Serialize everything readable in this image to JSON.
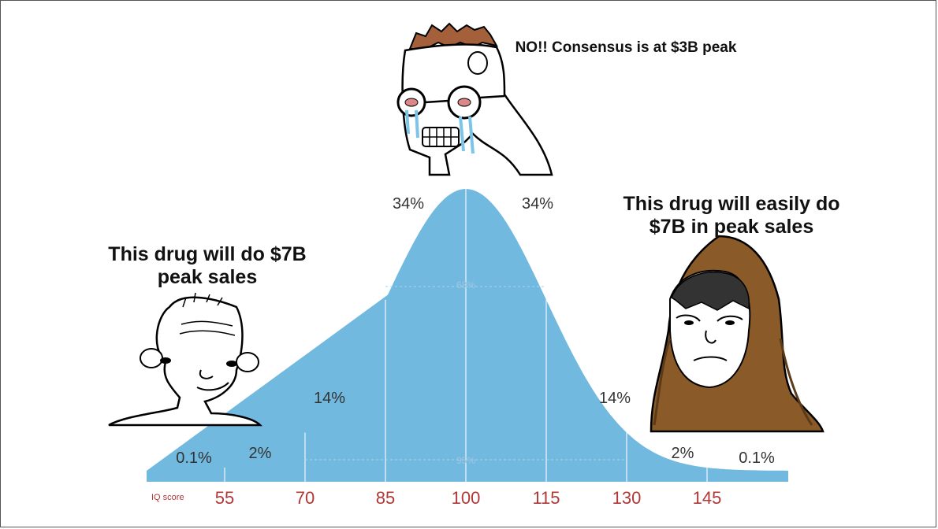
{
  "captions": {
    "left": "This drug will do $7B peak sales",
    "top": "NO!! Consensus is at $3B peak",
    "right": "This drug will easily do $7B in peak sales"
  },
  "chart_data": {
    "type": "area",
    "xlabel": "IQ score",
    "x_ticks": [
      55,
      70,
      85,
      100,
      115,
      130,
      145
    ],
    "mean": 100,
    "sd": 15,
    "band_labels": [
      "0.1%",
      "2%",
      "14%",
      "34%",
      "34%",
      "14%",
      "2%",
      "0.1%"
    ],
    "inner_labels": [
      "68%",
      "95%"
    ],
    "colors": {
      "fill": "#72b9e0",
      "tick_text": "#b03838",
      "gridline": "#ffffff"
    }
  }
}
